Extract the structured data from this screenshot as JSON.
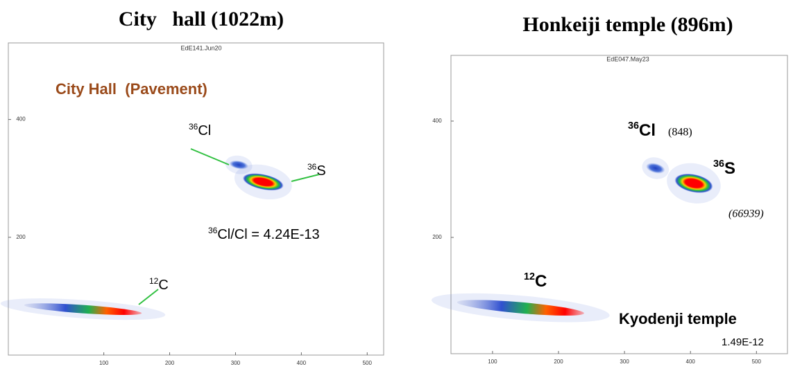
{
  "chart_data": [
    {
      "type": "scatter",
      "title": "City   hall (1022m)",
      "subtitle": "EdE141.Jun20",
      "xlim": [
        -45,
        525
      ],
      "ylim": [
        0,
        530
      ],
      "xticks": [
        100,
        200,
        300,
        400,
        500
      ],
      "yticks": [
        200,
        400
      ],
      "clusters": [
        {
          "mass": "36",
          "element": "Cl",
          "x": 305,
          "y": 323
        },
        {
          "mass": "36",
          "element": "S",
          "x": 342,
          "y": 294
        },
        {
          "mass": "12",
          "element": "C",
          "x": 121,
          "y": 78
        }
      ],
      "annotations": {
        "sample": "City Hall  (Pavement)",
        "ratio_mass": "36",
        "ratio_text": "Cl/Cl = 4.24E-13"
      }
    },
    {
      "type": "scatter",
      "title": "Honkeiji temple (896m)",
      "subtitle": "EdE047.May23",
      "xlim": [
        37,
        547
      ],
      "ylim": [
        0,
        513
      ],
      "xticks": [
        100,
        200,
        300,
        400,
        500
      ],
      "yticks": [
        200,
        400
      ],
      "clusters": [
        {
          "mass": "36",
          "element": "Cl",
          "x": 347,
          "y": 319,
          "count": "(848)"
        },
        {
          "mass": "36",
          "element": "S",
          "x": 405,
          "y": 293,
          "count": "(66939)"
        },
        {
          "mass": "12",
          "element": "C",
          "x": 153,
          "y": 79
        }
      ],
      "annotations": {
        "sample": "Kyodenji temple",
        "ratio": "1.49E-12"
      }
    }
  ]
}
